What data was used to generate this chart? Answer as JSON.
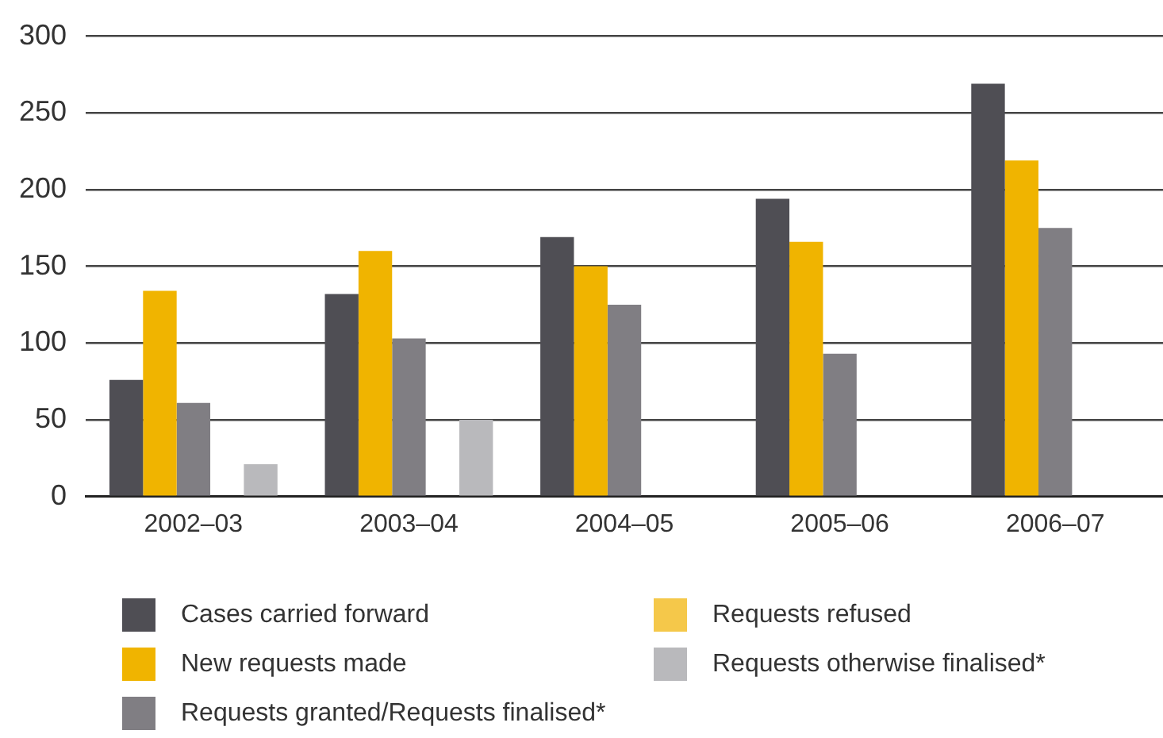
{
  "chart_data": {
    "type": "bar",
    "categories": [
      "2002–03",
      "2003–04",
      "2004–05",
      "2005–06",
      "2006–07"
    ],
    "series": [
      {
        "name": "Cases carried forward",
        "color": "#4f4e54",
        "values": [
          76,
          132,
          169,
          194,
          269
        ]
      },
      {
        "name": "New requests made",
        "color": "#f0b400",
        "values": [
          134,
          160,
          150,
          166,
          219
        ]
      },
      {
        "name": "Requests granted/Requests finalised*",
        "color": "#807e83",
        "values": [
          61,
          103,
          125,
          93,
          175
        ]
      },
      {
        "name": "Requests refused",
        "color": "#f5c84a",
        "values": [
          null,
          null,
          null,
          null,
          null
        ]
      },
      {
        "name": "Requests otherwise finalised*",
        "color": "#b9b9bc",
        "values": [
          21,
          50,
          null,
          null,
          null
        ]
      }
    ],
    "ylim": [
      0,
      300
    ],
    "yticks": [
      0,
      50,
      100,
      150,
      200,
      250,
      300
    ],
    "grid": "y",
    "legend": "bottom"
  }
}
